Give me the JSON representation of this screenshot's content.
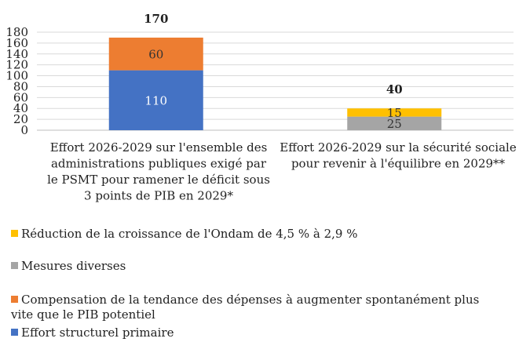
{
  "chart_data": {
    "type": "bar",
    "stacked": true,
    "title": "",
    "xlabel": "",
    "ylabel": "",
    "ylim": [
      0,
      180
    ],
    "yticks": [
      0,
      20,
      40,
      60,
      80,
      100,
      120,
      140,
      160,
      180
    ],
    "grid": true,
    "legend_position": "bottom",
    "categories": [
      "Effort 2026-2029 sur l'ensemble des administrations publiques exigé par le PSMT pour ramener le déficit sous 3 points de PIB en 2029*",
      "Effort 2026-2029 sur la sécurité sociale pour revenir à l'équilibre en 2029**"
    ],
    "category_lines": [
      [
        "Effort 2026-2029 sur l'ensemble des",
        "administrations publiques exigé par",
        "le PSMT pour ramener le déficit sous",
        "3 points de PIB en 2029*"
      ],
      [
        "Effort 2026-2029 sur la sécurité sociale",
        "pour revenir à l'équilibre en 2029**"
      ]
    ],
    "totals": [
      170,
      40
    ],
    "series": [
      {
        "name": "Effort structurel primaire",
        "color": "#4472C4",
        "label_color": "#ffffff",
        "values": [
          110,
          null
        ]
      },
      {
        "name": "Compensation de la tendance des dépenses à augmenter spontanément plus vite que le PIB potentiel",
        "color": "#ED7D31",
        "label_color": "#333333",
        "values": [
          60,
          null
        ]
      },
      {
        "name": "Mesures diverses",
        "color": "#A5A5A5",
        "label_color": "#333333",
        "values": [
          null,
          25
        ]
      },
      {
        "name": "Réduction de la croissance de l'Ondam de 4,5 % à 2,9 %",
        "color": "#FFC000",
        "label_color": "#333333",
        "values": [
          null,
          15
        ]
      }
    ]
  },
  "legend": [
    {
      "label": "Réduction de la croissance de l'Ondam de 4,5 % à 2,9 %",
      "color": "#FFC000",
      "lines": [
        "Réduction de la croissance de l'Ondam de 4,5 % à 2,9 %"
      ]
    },
    {
      "label": "Mesures diverses",
      "color": "#A5A5A5",
      "lines": [
        "Mesures diverses"
      ]
    },
    {
      "label": "Compensation de la tendance des dépenses à augmenter spontanément plus vite que le PIB potentiel",
      "color": "#ED7D31",
      "lines": [
        "Compensation de la tendance des dépenses à augmenter spontanément plus",
        "vite que le PIB potentiel"
      ]
    },
    {
      "label": "Effort structurel primaire",
      "color": "#4472C4",
      "lines": [
        "Effort structurel primaire"
      ]
    }
  ]
}
